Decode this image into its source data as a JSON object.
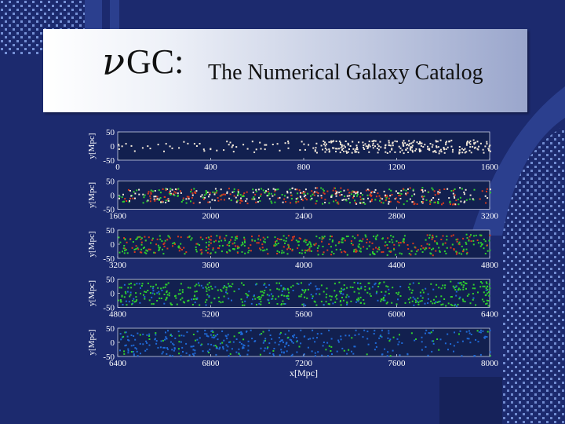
{
  "slide": {
    "title_symbol": "ν",
    "title_short": "GC:",
    "title_full": "The Numerical Galaxy Catalog"
  },
  "colors": {
    "background": "#1c2a6e",
    "grid_dots": "#7f9be0",
    "strip_bg": "#12204f",
    "galaxy_white": "#f3e9d9",
    "galaxy_red": "#d93a1d",
    "galaxy_green": "#2fd12f",
    "galaxy_blue": "#1f6ad8"
  },
  "chart_data": [
    {
      "type": "scatter",
      "xlim": [
        0,
        1600
      ],
      "ylim": [
        -50,
        50
      ],
      "xticks": [
        "0",
        "400",
        "800",
        "1200",
        "1600"
      ],
      "yticks": [
        "50",
        "0",
        "-50"
      ],
      "ylabel": "y[Mpc]",
      "xlabel": "",
      "series": [
        {
          "color": "white",
          "density": "sparse at x<800, dense at x>1000"
        }
      ]
    },
    {
      "type": "scatter",
      "xlim": [
        1600,
        3200
      ],
      "ylim": [
        -50,
        50
      ],
      "xticks": [
        "1600",
        "2000",
        "2400",
        "2800",
        "3200"
      ],
      "yticks": [
        "50",
        "0",
        "-50"
      ],
      "ylabel": "y[Mpc]",
      "xlabel": "",
      "series": [
        {
          "color": "white"
        },
        {
          "color": "red"
        },
        {
          "color": "green"
        }
      ]
    },
    {
      "type": "scatter",
      "xlim": [
        3200,
        4800
      ],
      "ylim": [
        -50,
        50
      ],
      "xticks": [
        "3200",
        "3600",
        "4000",
        "4400",
        "4800"
      ],
      "yticks": [
        "50",
        "0",
        "-50"
      ],
      "ylabel": "y[Mpc]",
      "xlabel": "",
      "series": [
        {
          "color": "red"
        },
        {
          "color": "green"
        }
      ]
    },
    {
      "type": "scatter",
      "xlim": [
        4800,
        6400
      ],
      "ylim": [
        -50,
        50
      ],
      "xticks": [
        "4800",
        "5200",
        "5600",
        "6000",
        "6400"
      ],
      "yticks": [
        "50",
        "0",
        "-50"
      ],
      "ylabel": "y[Mpc]",
      "xlabel": "",
      "series": [
        {
          "color": "green"
        },
        {
          "color": "blue"
        }
      ]
    },
    {
      "type": "scatter",
      "xlim": [
        6400,
        8000
      ],
      "ylim": [
        -50,
        50
      ],
      "xticks": [
        "6400",
        "6800",
        "7200",
        "7600",
        "8000"
      ],
      "yticks": [
        "50",
        "0",
        "-50"
      ],
      "ylabel": "y[Mpc]",
      "xlabel": "x[Mpc]",
      "series": [
        {
          "color": "blue"
        },
        {
          "color": "green"
        }
      ]
    }
  ]
}
